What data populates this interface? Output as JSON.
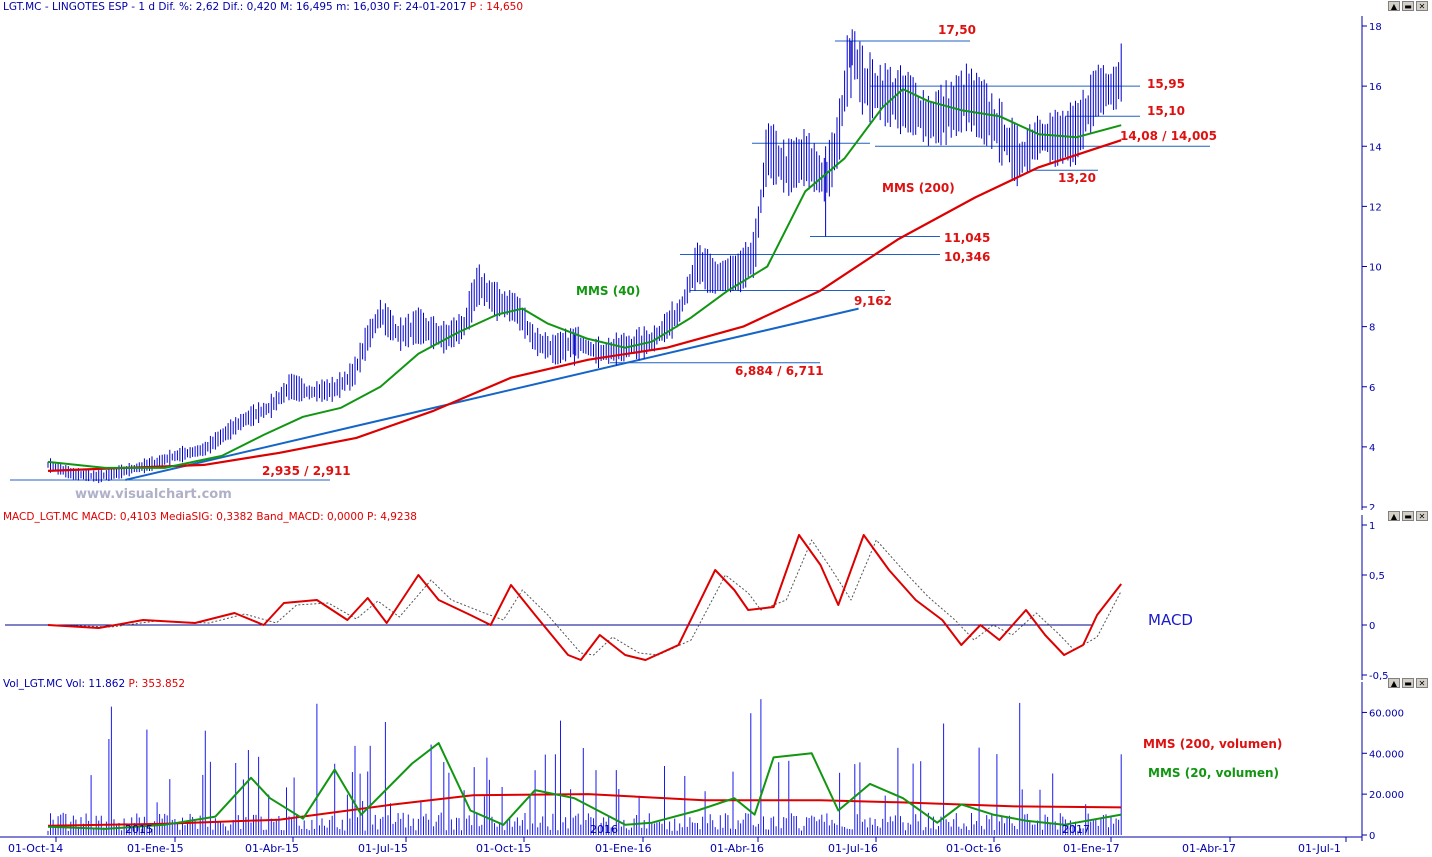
{
  "price_panel": {
    "header": {
      "symbol": "LGT.MC - LINGOTES ESP",
      "info": " - 1 d Dif. %: 2,62 Dif.: 0,420 M: 16,495 m: 16,030 F: 24-01-2017 ",
      "last": "P : 14,650"
    },
    "watermark": "www.visualchart.com",
    "labels": {
      "mms40": "MMS (40)",
      "mms200": "MMS (200)"
    }
  },
  "macd_panel": {
    "header": {
      "info": "MACD_LGT.MC MACD: 0,4103 MediaSIG: 0,3382 Band_MACD: 0,0000 ",
      "last": "P: 4,9238"
    },
    "label": "MACD"
  },
  "volume_panel": {
    "header": {
      "info": "Vol_LGT.MC Vol: 11.862 ",
      "last": "P: 353.852"
    },
    "labels": {
      "mms200": "MMS (200, volumen)",
      "mms20": "MMS (20, volumen)"
    }
  },
  "x_axis": {
    "ticks": [
      "01-Oct-14",
      "01-Ene-15",
      "01-Abr-15",
      "01-Jul-15",
      "01-Oct-15",
      "01-Ene-16",
      "01-Abr-16",
      "01-Jul-16",
      "01-Oct-16",
      "01-Ene-17",
      "01-Abr-17",
      "01-Jul-1"
    ]
  },
  "year_marks": [
    "2015",
    "2016",
    "2017"
  ],
  "chart_data": [
    {
      "type": "line",
      "title": "LGT.MC - LINGOTES ESP",
      "yticks": [
        "18",
        "16",
        "14",
        "12",
        "10",
        "8",
        "6",
        "4",
        "2"
      ],
      "ylim": [
        2,
        18
      ],
      "price_path": [
        [
          "2014-10-01",
          3.4
        ],
        [
          "2014-10-20",
          3.1
        ],
        [
          "2014-11-10",
          3.0
        ],
        [
          "2014-12-01",
          3.2
        ],
        [
          "2014-12-20",
          3.4
        ],
        [
          "2015-01-10",
          3.7
        ],
        [
          "2015-02-01",
          3.9
        ],
        [
          "2015-02-20",
          4.5
        ],
        [
          "2015-03-05",
          4.9
        ],
        [
          "2015-03-25",
          5.3
        ],
        [
          "2015-04-10",
          6.0
        ],
        [
          "2015-04-25",
          5.8
        ],
        [
          "2015-05-15",
          5.9
        ],
        [
          "2015-05-30",
          6.4
        ],
        [
          "2015-06-10",
          7.6
        ],
        [
          "2015-06-20",
          8.4
        ],
        [
          "2015-07-05",
          7.7
        ],
        [
          "2015-07-20",
          8.0
        ],
        [
          "2015-08-10",
          7.6
        ],
        [
          "2015-08-25",
          8.0
        ],
        [
          "2015-09-05",
          9.4
        ],
        [
          "2015-09-20",
          8.8
        ],
        [
          "2015-10-05",
          8.6
        ],
        [
          "2015-10-20",
          7.5
        ],
        [
          "2015-11-05",
          7.2
        ],
        [
          "2015-11-20",
          7.5
        ],
        [
          "2015-12-10",
          7.1
        ],
        [
          "2015-12-30",
          7.3
        ],
        [
          "2016-01-20",
          7.5
        ],
        [
          "2016-02-10",
          8.4
        ],
        [
          "2016-02-25",
          10.1
        ],
        [
          "2016-03-10",
          9.6
        ],
        [
          "2016-03-30",
          9.8
        ],
        [
          "2016-04-10",
          10.4
        ],
        [
          "2016-04-20",
          13.9
        ],
        [
          "2016-05-05",
          13.2
        ],
        [
          "2016-05-20",
          13.6
        ],
        [
          "2016-06-05",
          12.8
        ],
        [
          "2016-06-15",
          14.2
        ],
        [
          "2016-06-25",
          17.4
        ],
        [
          "2016-07-05",
          16.0
        ],
        [
          "2016-07-25",
          15.6
        ],
        [
          "2016-08-10",
          15.4
        ],
        [
          "2016-08-25",
          14.8
        ],
        [
          "2016-09-10",
          15.1
        ],
        [
          "2016-09-25",
          15.6
        ],
        [
          "2016-10-10",
          15.0
        ],
        [
          "2016-10-25",
          14.2
        ],
        [
          "2016-11-05",
          13.5
        ],
        [
          "2016-11-20",
          14.3
        ],
        [
          "2016-12-05",
          14.2
        ],
        [
          "2016-12-20",
          14.4
        ],
        [
          "2017-01-05",
          15.8
        ],
        [
          "2017-01-20",
          15.9
        ],
        [
          "2017-01-24",
          16.4
        ]
      ],
      "series": [
        {
          "name": "MMS (40)",
          "color": "#129612",
          "values": [
            [
              "2014-10-01",
              3.5
            ],
            [
              "2014-11-15",
              3.3
            ],
            [
              "2015-01-01",
              3.3
            ],
            [
              "2015-02-15",
              3.7
            ],
            [
              "2015-03-20",
              4.4
            ],
            [
              "2015-04-20",
              5.0
            ],
            [
              "2015-05-20",
              5.3
            ],
            [
              "2015-06-20",
              6.0
            ],
            [
              "2015-07-20",
              7.1
            ],
            [
              "2015-08-20",
              7.8
            ],
            [
              "2015-09-20",
              8.4
            ],
            [
              "2015-10-10",
              8.6
            ],
            [
              "2015-10-30",
              8.1
            ],
            [
              "2015-11-30",
              7.6
            ],
            [
              "2015-12-30",
              7.3
            ],
            [
              "2016-01-20",
              7.5
            ],
            [
              "2016-02-20",
              8.3
            ],
            [
              "2016-03-20",
              9.2
            ],
            [
              "2016-04-20",
              10.0
            ],
            [
              "2016-05-20",
              12.5
            ],
            [
              "2016-06-20",
              13.6
            ],
            [
              "2016-07-20",
              15.3
            ],
            [
              "2016-08-05",
              15.9
            ],
            [
              "2016-08-25",
              15.5
            ],
            [
              "2016-09-20",
              15.2
            ],
            [
              "2016-10-20",
              15.0
            ],
            [
              "2016-11-20",
              14.4
            ],
            [
              "2016-12-20",
              14.3
            ],
            [
              "2017-01-24",
              14.7
            ]
          ]
        },
        {
          "name": "MMS (200)",
          "color": "#dd0000",
          "values": [
            [
              "2014-10-01",
              3.2
            ],
            [
              "2014-12-01",
              3.3
            ],
            [
              "2015-02-01",
              3.4
            ],
            [
              "2015-04-01",
              3.8
            ],
            [
              "2015-06-01",
              4.3
            ],
            [
              "2015-08-01",
              5.2
            ],
            [
              "2015-10-01",
              6.3
            ],
            [
              "2015-12-01",
              6.9
            ],
            [
              "2016-02-01",
              7.3
            ],
            [
              "2016-04-01",
              8.0
            ],
            [
              "2016-06-01",
              9.2
            ],
            [
              "2016-08-01",
              10.9
            ],
            [
              "2016-10-01",
              12.3
            ],
            [
              "2016-11-20",
              13.3
            ],
            [
              "2017-01-24",
              14.2
            ]
          ]
        }
      ],
      "trendline": [
        [
          "2014-12-01",
          2.9
        ],
        [
          "2016-07-01",
          8.6
        ]
      ],
      "levels": [
        {
          "label": "17,50",
          "value": 17.5
        },
        {
          "label": "15,95",
          "value": 16.0
        },
        {
          "label": "15,10",
          "value": 15.0
        },
        {
          "label": "14,08 / 14,005",
          "value": 14.0
        },
        {
          "label": "13,20",
          "value": 13.2
        },
        {
          "label": "11,045",
          "value": 11.0
        },
        {
          "label": "10,346",
          "value": 10.4
        },
        {
          "label": "9,162",
          "value": 9.2
        },
        {
          "label": "6,884 / 6,711",
          "value": 6.8
        },
        {
          "label": "2,935 / 2,911",
          "value": 2.9
        }
      ]
    },
    {
      "type": "line",
      "title": "MACD",
      "yticks": [
        "1",
        "0,5",
        "0",
        "-0,5"
      ],
      "ylim": [
        -0.5,
        1
      ],
      "series": [
        {
          "name": "MACD",
          "color": "#dd0000",
          "values": [
            [
              "2014-10-01",
              0.0
            ],
            [
              "2014-11-10",
              -0.03
            ],
            [
              "2014-12-15",
              0.05
            ],
            [
              "2015-01-25",
              0.02
            ],
            [
              "2015-02-25",
              0.12
            ],
            [
              "2015-03-20",
              0.0
            ],
            [
              "2015-04-05",
              0.22
            ],
            [
              "2015-05-01",
              0.25
            ],
            [
              "2015-05-25",
              0.05
            ],
            [
              "2015-06-10",
              0.27
            ],
            [
              "2015-06-25",
              0.02
            ],
            [
              "2015-07-20",
              0.5
            ],
            [
              "2015-08-05",
              0.25
            ],
            [
              "2015-08-30",
              0.1
            ],
            [
              "2015-09-15",
              0.0
            ],
            [
              "2015-10-01",
              0.4
            ],
            [
              "2015-10-20",
              0.1
            ],
            [
              "2015-11-15",
              -0.3
            ],
            [
              "2015-11-25",
              -0.35
            ],
            [
              "2015-12-10",
              -0.1
            ],
            [
              "2015-12-30",
              -0.3
            ],
            [
              "2016-01-15",
              -0.35
            ],
            [
              "2016-02-10",
              -0.2
            ],
            [
              "2016-03-10",
              0.55
            ],
            [
              "2016-03-25",
              0.35
            ],
            [
              "2016-04-05",
              0.15
            ],
            [
              "2016-04-25",
              0.18
            ],
            [
              "2016-05-15",
              0.9
            ],
            [
              "2016-06-01",
              0.6
            ],
            [
              "2016-06-15",
              0.2
            ],
            [
              "2016-07-05",
              0.9
            ],
            [
              "2016-07-25",
              0.55
            ],
            [
              "2016-08-15",
              0.25
            ],
            [
              "2016-09-05",
              0.05
            ],
            [
              "2016-09-20",
              -0.2
            ],
            [
              "2016-10-05",
              0.0
            ],
            [
              "2016-10-20",
              -0.15
            ],
            [
              "2016-11-10",
              0.15
            ],
            [
              "2016-11-25",
              -0.1
            ],
            [
              "2016-12-10",
              -0.3
            ],
            [
              "2016-12-25",
              -0.2
            ],
            [
              "2017-01-05",
              0.1
            ],
            [
              "2017-01-24",
              0.41
            ]
          ]
        },
        {
          "name": "MediaSIG",
          "color": "#555555",
          "values": [
            [
              "2014-10-01",
              0.0
            ],
            [
              "2014-11-20",
              -0.02
            ],
            [
              "2014-12-25",
              0.04
            ],
            [
              "2015-02-05",
              0.02
            ],
            [
              "2015-03-05",
              0.11
            ],
            [
              "2015-03-30",
              0.02
            ],
            [
              "2015-04-15",
              0.2
            ],
            [
              "2015-05-10",
              0.22
            ],
            [
              "2015-06-01",
              0.06
            ],
            [
              "2015-06-18",
              0.24
            ],
            [
              "2015-07-05",
              0.08
            ],
            [
              "2015-07-30",
              0.45
            ],
            [
              "2015-08-15",
              0.25
            ],
            [
              "2015-09-10",
              0.12
            ],
            [
              "2015-09-25",
              0.05
            ],
            [
              "2015-10-10",
              0.35
            ],
            [
              "2015-10-30",
              0.1
            ],
            [
              "2015-11-25",
              -0.28
            ],
            [
              "2015-12-05",
              -0.3
            ],
            [
              "2015-12-20",
              -0.12
            ],
            [
              "2016-01-10",
              -0.28
            ],
            [
              "2016-01-25",
              -0.3
            ],
            [
              "2016-02-20",
              -0.15
            ],
            [
              "2016-03-18",
              0.5
            ],
            [
              "2016-04-05",
              0.32
            ],
            [
              "2016-04-15",
              0.15
            ],
            [
              "2016-05-05",
              0.25
            ],
            [
              "2016-05-25",
              0.85
            ],
            [
              "2016-06-10",
              0.55
            ],
            [
              "2016-06-25",
              0.25
            ],
            [
              "2016-07-15",
              0.85
            ],
            [
              "2016-08-05",
              0.55
            ],
            [
              "2016-08-25",
              0.28
            ],
            [
              "2016-09-15",
              0.05
            ],
            [
              "2016-09-30",
              -0.15
            ],
            [
              "2016-10-15",
              0.0
            ],
            [
              "2016-10-30",
              -0.1
            ],
            [
              "2016-11-18",
              0.12
            ],
            [
              "2016-12-05",
              -0.08
            ],
            [
              "2016-12-18",
              -0.25
            ],
            [
              "2017-01-05",
              -0.12
            ],
            [
              "2017-01-24",
              0.34
            ]
          ]
        }
      ]
    },
    {
      "type": "bar",
      "title": "Vol_LGT.MC",
      "yticks": [
        "60.000",
        "40.000",
        "20.000",
        "0"
      ],
      "ylim": [
        0,
        70000
      ],
      "series": [
        {
          "name": "MMS (200, volumen)",
          "color": "#dd0000",
          "values": [
            [
              "2014-10-01",
              4500
            ],
            [
              "2015-01-01",
              5500
            ],
            [
              "2015-04-01",
              7500
            ],
            [
              "2015-07-01",
              15000
            ],
            [
              "2015-09-01",
              19500
            ],
            [
              "2015-12-01",
              20000
            ],
            [
              "2016-03-01",
              17000
            ],
            [
              "2016-06-01",
              17000
            ],
            [
              "2016-08-01",
              16000
            ],
            [
              "2016-11-01",
              14000
            ],
            [
              "2017-01-24",
              13500
            ]
          ]
        },
        {
          "name": "MMS (20, volumen)",
          "color": "#129612",
          "values": [
            [
              "2014-10-01",
              4000
            ],
            [
              "2014-11-15",
              3000
            ],
            [
              "2015-01-01",
              5000
            ],
            [
              "2015-02-10",
              9000
            ],
            [
              "2015-03-10",
              28000
            ],
            [
              "2015-03-25",
              18000
            ],
            [
              "2015-04-20",
              8000
            ],
            [
              "2015-05-15",
              32000
            ],
            [
              "2015-06-05",
              10000
            ],
            [
              "2015-07-15",
              35000
            ],
            [
              "2015-08-05",
              45000
            ],
            [
              "2015-08-30",
              12000
            ],
            [
              "2015-09-25",
              5000
            ],
            [
              "2015-10-20",
              22000
            ],
            [
              "2015-11-20",
              18000
            ],
            [
              "2015-12-30",
              5000
            ],
            [
              "2016-01-20",
              6000
            ],
            [
              "2016-02-25",
              12000
            ],
            [
              "2016-03-25",
              18000
            ],
            [
              "2016-04-10",
              10000
            ],
            [
              "2016-04-25",
              38000
            ],
            [
              "2016-05-25",
              40000
            ],
            [
              "2016-06-15",
              12000
            ],
            [
              "2016-07-10",
              25000
            ],
            [
              "2016-08-05",
              18000
            ],
            [
              "2016-09-01",
              6000
            ],
            [
              "2016-09-20",
              15000
            ],
            [
              "2016-10-15",
              10000
            ],
            [
              "2016-11-10",
              7000
            ],
            [
              "2016-12-10",
              5000
            ],
            [
              "2017-01-24",
              10000
            ]
          ]
        }
      ],
      "note": "volume spikes up to ~70.000"
    }
  ]
}
